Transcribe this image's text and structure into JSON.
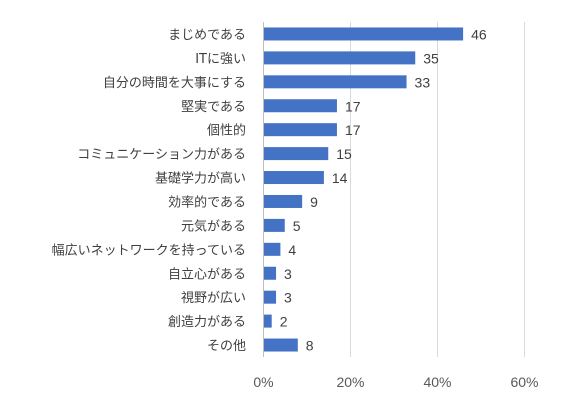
{
  "chart_data": {
    "type": "bar",
    "orientation": "horizontal",
    "categories": [
      "まじめである",
      "ITに強い",
      "自分の時間を大事にする",
      "堅実である",
      "個性的",
      "コミュニケーション力がある",
      "基礎学力が高い",
      "効率的である",
      "元気がある",
      "幅広いネットワークを持っている",
      "自立心がある",
      "視野が広い",
      "創造力がある",
      "その他"
    ],
    "values": [
      46,
      35,
      33,
      17,
      17,
      15,
      14,
      9,
      5,
      4,
      3,
      3,
      2,
      8
    ],
    "data_labels": [
      "46",
      "35",
      "33",
      "17",
      "17",
      "15",
      "14",
      "9",
      "5",
      "4",
      "3",
      "3",
      "2",
      "8"
    ],
    "x_ticks": [
      "0%",
      "20%",
      "40%",
      "60%"
    ],
    "xlim": [
      0,
      60
    ],
    "bar_color": "#4472c4",
    "grid": true,
    "legend": "none",
    "title": "",
    "xlabel": "",
    "ylabel": ""
  }
}
